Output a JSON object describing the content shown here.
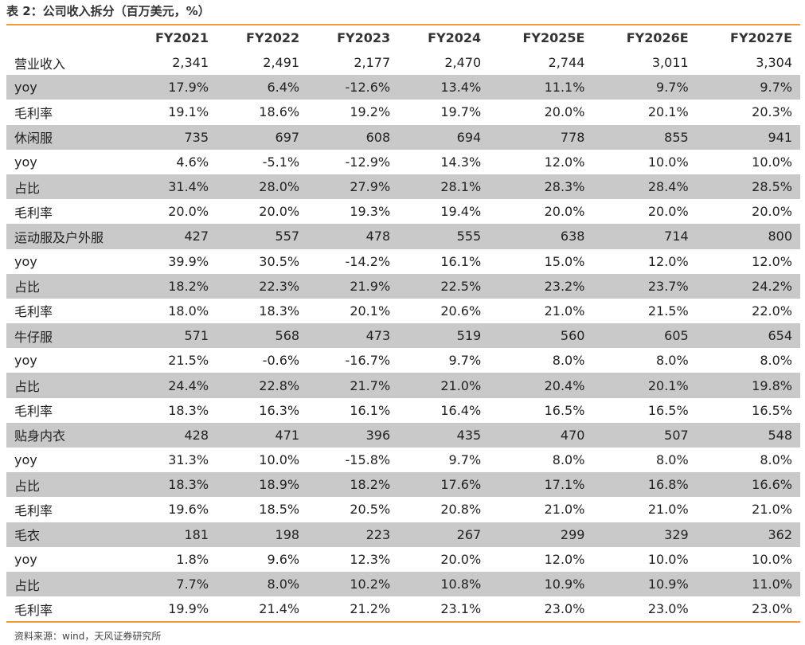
{
  "title": "表 2：公司收入拆分（百万美元，%）",
  "table": {
    "columns": [
      "FY2021",
      "FY2022",
      "FY2023",
      "FY2024",
      "FY2025E",
      "FY2026E",
      "FY2027E"
    ],
    "rows": [
      [
        "营业收入",
        "2,341",
        "2,491",
        "2,177",
        "2,470",
        "2,744",
        "3,011",
        "3,304"
      ],
      [
        "yoy",
        "17.9%",
        "6.4%",
        "-12.6%",
        "13.4%",
        "11.1%",
        "9.7%",
        "9.7%"
      ],
      [
        "毛利率",
        "19.1%",
        "18.6%",
        "19.2%",
        "19.7%",
        "20.0%",
        "20.1%",
        "20.3%"
      ],
      [
        "休闲服",
        "735",
        "697",
        "608",
        "694",
        "778",
        "855",
        "941"
      ],
      [
        "yoy",
        "4.6%",
        "-5.1%",
        "-12.9%",
        "14.3%",
        "12.0%",
        "10.0%",
        "10.0%"
      ],
      [
        "占比",
        "31.4%",
        "28.0%",
        "27.9%",
        "28.1%",
        "28.3%",
        "28.4%",
        "28.5%"
      ],
      [
        "毛利率",
        "20.0%",
        "20.0%",
        "19.3%",
        "19.4%",
        "20.0%",
        "20.0%",
        "20.0%"
      ],
      [
        "运动服及户外服",
        "427",
        "557",
        "478",
        "555",
        "638",
        "714",
        "800"
      ],
      [
        "yoy",
        "39.9%",
        "30.5%",
        "-14.2%",
        "16.1%",
        "15.0%",
        "12.0%",
        "12.0%"
      ],
      [
        "占比",
        "18.2%",
        "22.3%",
        "21.9%",
        "22.5%",
        "23.2%",
        "23.7%",
        "24.2%"
      ],
      [
        "毛利率",
        "18.0%",
        "18.3%",
        "20.1%",
        "20.6%",
        "21.0%",
        "21.5%",
        "22.0%"
      ],
      [
        "牛仔服",
        "571",
        "568",
        "473",
        "519",
        "560",
        "605",
        "654"
      ],
      [
        "yoy",
        "21.5%",
        "-0.6%",
        "-16.7%",
        "9.7%",
        "8.0%",
        "8.0%",
        "8.0%"
      ],
      [
        "占比",
        "24.4%",
        "22.8%",
        "21.7%",
        "21.0%",
        "20.4%",
        "20.1%",
        "19.8%"
      ],
      [
        "毛利率",
        "18.3%",
        "16.3%",
        "16.1%",
        "16.4%",
        "16.5%",
        "16.5%",
        "16.5%"
      ],
      [
        "贴身内衣",
        "428",
        "471",
        "396",
        "435",
        "470",
        "507",
        "548"
      ],
      [
        "yoy",
        "31.3%",
        "10.0%",
        "-15.8%",
        "9.7%",
        "8.0%",
        "8.0%",
        "8.0%"
      ],
      [
        "占比",
        "18.3%",
        "18.9%",
        "18.2%",
        "17.6%",
        "17.1%",
        "16.8%",
        "16.6%"
      ],
      [
        "毛利率",
        "19.6%",
        "18.5%",
        "20.5%",
        "20.8%",
        "21.0%",
        "21.0%",
        "21.0%"
      ],
      [
        "毛衣",
        "181",
        "198",
        "223",
        "267",
        "299",
        "329",
        "362"
      ],
      [
        "yoy",
        "1.8%",
        "9.6%",
        "12.3%",
        "20.0%",
        "12.0%",
        "10.0%",
        "10.0%"
      ],
      [
        "占比",
        "7.7%",
        "8.0%",
        "10.2%",
        "10.8%",
        "10.9%",
        "10.9%",
        "11.0%"
      ],
      [
        "毛利率",
        "19.9%",
        "21.4%",
        "21.2%",
        "23.1%",
        "23.0%",
        "23.0%",
        "23.0%"
      ]
    ]
  },
  "source": "资料来源：wind，天风证券研究所"
}
